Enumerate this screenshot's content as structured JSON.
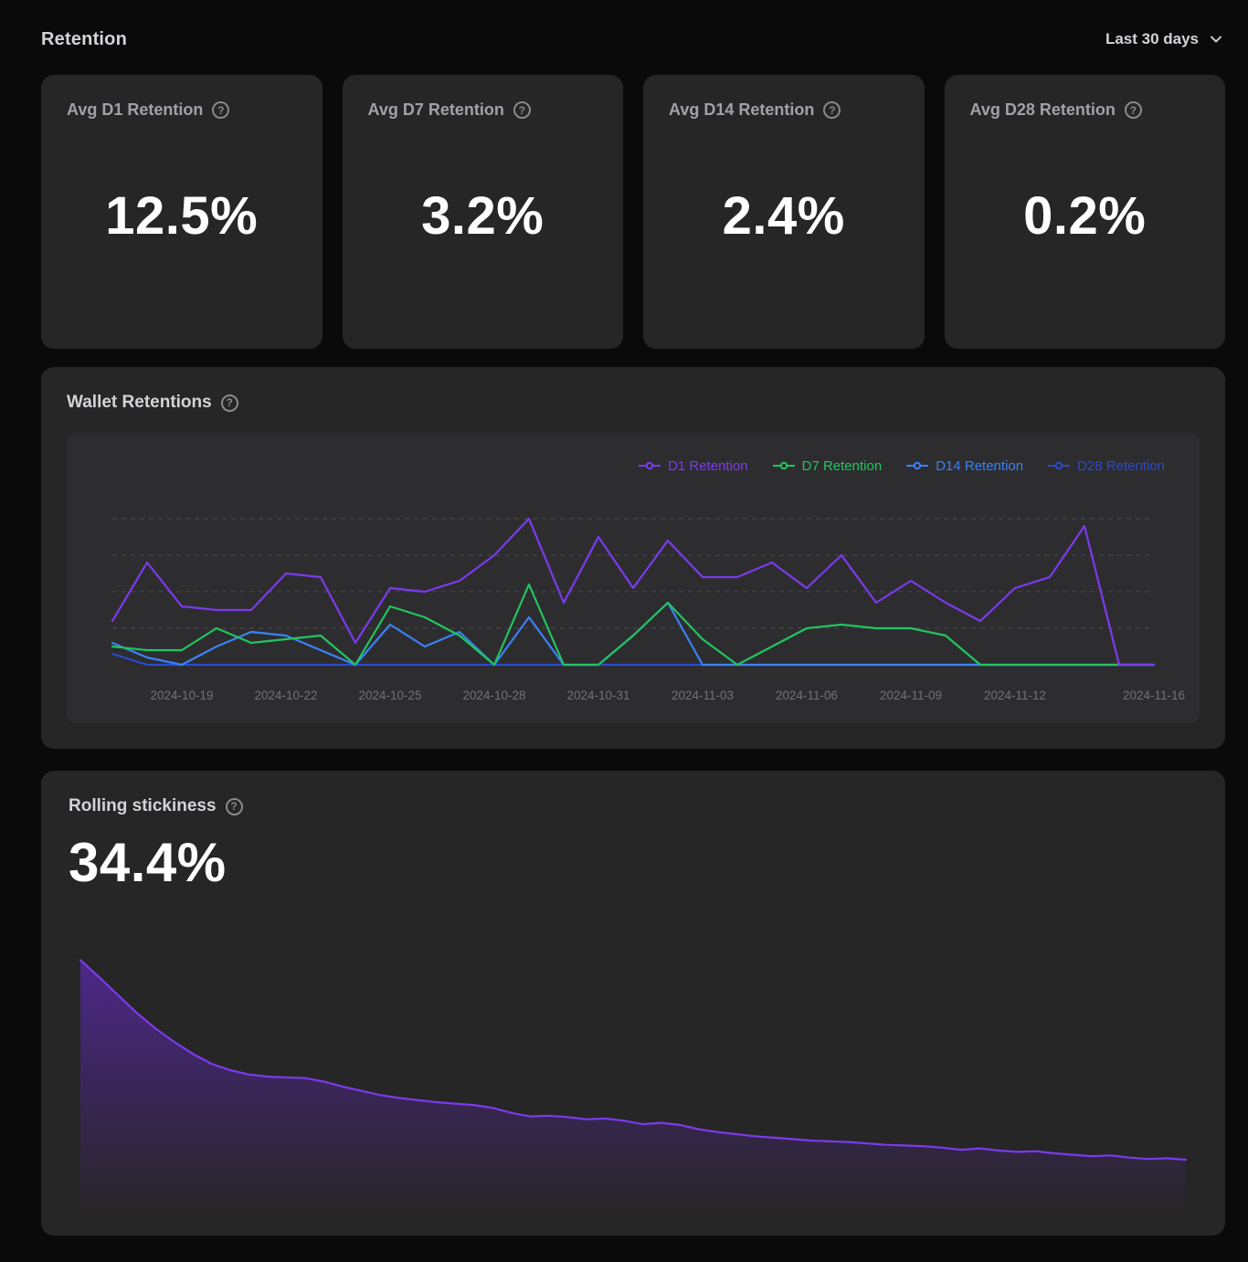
{
  "page": {
    "title": "Retention",
    "date_range": "Last 30 days"
  },
  "icons": {
    "help_glyph": "?"
  },
  "stat_cards": [
    {
      "label": "Avg D1 Retention",
      "value": "12.5%"
    },
    {
      "label": "Avg D7 Retention",
      "value": "3.2%"
    },
    {
      "label": "Avg D14 Retention",
      "value": "2.4%"
    },
    {
      "label": "Avg D28 Retention",
      "value": "0.2%"
    }
  ],
  "wallet_retentions": {
    "title": "Wallet Retentions"
  },
  "rolling_stickiness": {
    "title": "Rolling stickiness",
    "value": "34.4%"
  },
  "colors": {
    "page_bg": "#0a0a0a",
    "card_bg": "#262626",
    "panel_bg": "#2d2d30",
    "grid_line": "#4b4b52",
    "axis_label": "#71717a",
    "d1": "#7c3aed",
    "d7": "#22c55e",
    "d14": "#3b82f6",
    "d28": "#2b4acb",
    "stickiness": "#7c3aed"
  },
  "chart_data": [
    {
      "name": "wallet_retentions",
      "type": "line",
      "title": "Wallet Retentions",
      "xlabel": "",
      "ylabel": "",
      "unit": "%",
      "ylim": [
        0,
        45
      ],
      "grid": "horizontal-dashed",
      "gridline_values": [
        10,
        20,
        30,
        40
      ],
      "legend_position": "top-right",
      "x": [
        "2024-10-17",
        "2024-10-18",
        "2024-10-19",
        "2024-10-20",
        "2024-10-21",
        "2024-10-22",
        "2024-10-23",
        "2024-10-24",
        "2024-10-25",
        "2024-10-26",
        "2024-10-27",
        "2024-10-28",
        "2024-10-29",
        "2024-10-30",
        "2024-10-31",
        "2024-11-01",
        "2024-11-02",
        "2024-11-03",
        "2024-11-04",
        "2024-11-05",
        "2024-11-06",
        "2024-11-07",
        "2024-11-08",
        "2024-11-09",
        "2024-11-10",
        "2024-11-11",
        "2024-11-12",
        "2024-11-13",
        "2024-11-14",
        "2024-11-15",
        "2024-11-16"
      ],
      "x_tick_labels": [
        "2024-10-19",
        "2024-10-22",
        "2024-10-25",
        "2024-10-28",
        "2024-10-31",
        "2024-11-03",
        "2024-11-06",
        "2024-11-09",
        "2024-11-12",
        "2024-11-16"
      ],
      "x_tick_indices": [
        2,
        5,
        8,
        11,
        14,
        17,
        20,
        23,
        26,
        30
      ],
      "series": [
        {
          "name": "D1 Retention",
          "color": "#7c3aed",
          "values": [
            12,
            28,
            16,
            15,
            15,
            25,
            24,
            6,
            21,
            20,
            23,
            30,
            40,
            17,
            35,
            21,
            34,
            24,
            24,
            28,
            21,
            30,
            17,
            23,
            17,
            12,
            21,
            24,
            38,
            0,
            0
          ]
        },
        {
          "name": "D7 Retention",
          "color": "#22c55e",
          "values": [
            5,
            4,
            4,
            10,
            6,
            7,
            8,
            0,
            16,
            13,
            8,
            0,
            22,
            0,
            0,
            8,
            17,
            7,
            0,
            5,
            10,
            11,
            10,
            10,
            8,
            0,
            0,
            0,
            0,
            0,
            0
          ]
        },
        {
          "name": "D14 Retention",
          "color": "#3b82f6",
          "values": [
            6,
            2,
            0,
            5,
            9,
            8,
            4,
            0,
            11,
            5,
            9,
            0,
            13,
            0,
            0,
            8,
            17,
            0,
            0,
            0,
            0,
            0,
            0,
            0,
            0,
            0,
            0,
            0,
            0,
            0,
            0
          ]
        },
        {
          "name": "D28 Retention",
          "color": "#2b4acb",
          "values": [
            3,
            0,
            0,
            0,
            0,
            0,
            0,
            0,
            0,
            0,
            0,
            0,
            0,
            0,
            0,
            0,
            0,
            0,
            0,
            0,
            0,
            0,
            0,
            0,
            0,
            0,
            0,
            0,
            0,
            0,
            0
          ]
        }
      ]
    },
    {
      "name": "rolling_stickiness",
      "type": "area",
      "title": "Rolling stickiness",
      "current_value": 34.4,
      "unit": "%",
      "ylim": [
        0,
        36
      ],
      "color": "#7c3aed",
      "values": [
        34.4,
        32.0,
        29.5,
        27.0,
        24.8,
        22.9,
        21.2,
        19.8,
        18.9,
        18.3,
        18.0,
        17.9,
        17.8,
        17.3,
        16.6,
        16.0,
        15.4,
        15.0,
        14.7,
        14.4,
        14.2,
        14.0,
        13.6,
        12.9,
        12.4,
        12.5,
        12.3,
        12.0,
        12.1,
        11.8,
        11.3,
        11.5,
        11.2,
        10.6,
        10.2,
        9.9,
        9.6,
        9.4,
        9.2,
        9.0,
        8.9,
        8.8,
        8.6,
        8.4,
        8.3,
        8.2,
        8.0,
        7.7,
        7.9,
        7.6,
        7.4,
        7.5,
        7.2,
        7.0,
        6.8,
        6.9,
        6.6,
        6.4,
        6.5,
        6.3
      ]
    }
  ]
}
